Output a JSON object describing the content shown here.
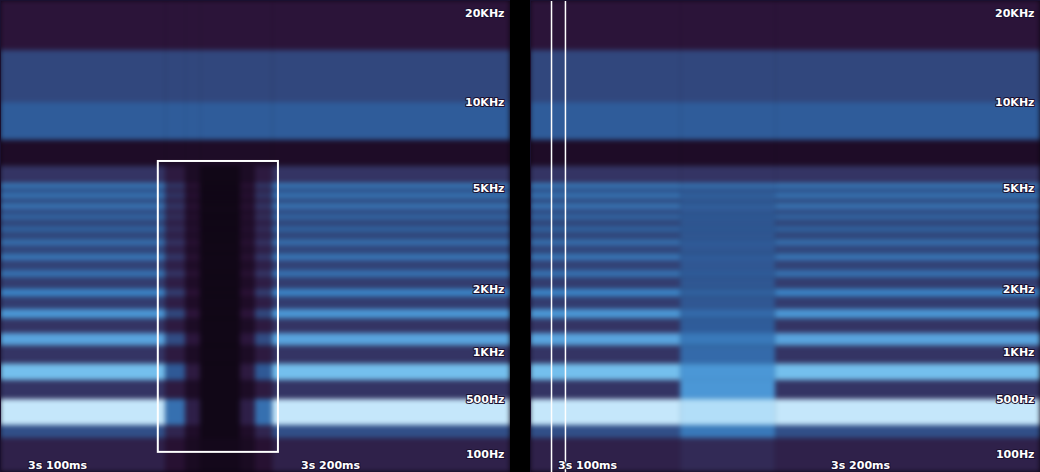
{
  "chart_data": [
    {
      "type": "heatmap",
      "xlim": [
        3.0791,
        3.2659
      ],
      "xticks": [
        {
          "value": 3.1,
          "label": "3s 100ms"
        },
        {
          "value": 3.2,
          "label": "3s 200ms"
        }
      ],
      "ylim": [
        0,
        22000
      ],
      "yticks": [
        {
          "value": 100,
          "label": "100Hz"
        },
        {
          "value": 500,
          "label": "500Hz"
        },
        {
          "value": 1000,
          "label": "1KHz"
        },
        {
          "value": 2000,
          "label": "2KHz"
        },
        {
          "value": 5000,
          "label": "5KHz"
        },
        {
          "value": 10000,
          "label": "10KHz"
        },
        {
          "value": 20000,
          "label": "20KHz"
        }
      ],
      "zlim": [
        0,
        100
      ],
      "time_edges": [
        3.0791,
        3.1396,
        3.1469,
        3.1524,
        3.167,
        3.1725,
        3.1788,
        3.2659
      ],
      "freq_edges": [
        0,
        200,
        290,
        500,
        680,
        860,
        1080,
        1250,
        1470,
        1630,
        1850,
        2010,
        2240,
        2400,
        2640,
        2800,
        3030,
        3190,
        3420,
        3580,
        3810,
        3970,
        4200,
        4360,
        4590,
        4750,
        5000,
        5200,
        6000,
        7400,
        10000,
        15000,
        22000
      ],
      "cells": [
        [
          25,
          15,
          8,
          5,
          8,
          15,
          25
        ],
        [
          45,
          27,
          11,
          3,
          11,
          27,
          45
        ],
        [
          95,
          57,
          24,
          3,
          24,
          57,
          95
        ],
        [
          35,
          21,
          9,
          3,
          9,
          21,
          35
        ],
        [
          82,
          49,
          21,
          3,
          21,
          49,
          82
        ],
        [
          35,
          21,
          9,
          3,
          9,
          21,
          35
        ],
        [
          74,
          44,
          19,
          3,
          19,
          44,
          74
        ],
        [
          35,
          21,
          9,
          3,
          9,
          21,
          35
        ],
        [
          70,
          42,
          18,
          3,
          18,
          42,
          70
        ],
        [
          38,
          23,
          10,
          3,
          10,
          23,
          38
        ],
        [
          64,
          38,
          16,
          3,
          16,
          38,
          64
        ],
        [
          38,
          23,
          10,
          3,
          10,
          23,
          38
        ],
        [
          58,
          35,
          15,
          3,
          15,
          35,
          58
        ],
        [
          40,
          24,
          10,
          3,
          10,
          24,
          40
        ],
        [
          60,
          36,
          15,
          3,
          15,
          36,
          60
        ],
        [
          42,
          25,
          11,
          3,
          11,
          25,
          42
        ],
        [
          58,
          35,
          15,
          3,
          15,
          35,
          58
        ],
        [
          42,
          25,
          11,
          3,
          11,
          25,
          42
        ],
        [
          55,
          33,
          14,
          3,
          14,
          33,
          55
        ],
        [
          42,
          25,
          11,
          3,
          11,
          25,
          42
        ],
        [
          56,
          34,
          14,
          3,
          14,
          34,
          56
        ],
        [
          45,
          27,
          11,
          3,
          11,
          27,
          45
        ],
        [
          62,
          37,
          16,
          3,
          16,
          37,
          62
        ],
        [
          45,
          27,
          11,
          3,
          11,
          27,
          45
        ],
        [
          64,
          38,
          16,
          3,
          16,
          38,
          64
        ],
        [
          48,
          29,
          12,
          3,
          12,
          29,
          48
        ],
        [
          62,
          37,
          16,
          3,
          16,
          37,
          62
        ],
        [
          35,
          21,
          9,
          3,
          9,
          21,
          35
        ],
        [
          10,
          10,
          10,
          10,
          10,
          10,
          10
        ],
        [
          50,
          50,
          50,
          50,
          50,
          50,
          50
        ],
        [
          42,
          42,
          42,
          42,
          42,
          42,
          42
        ],
        [
          18,
          18,
          18,
          18,
          18,
          18,
          18
        ]
      ],
      "selection": {
        "x": [
          3.1369,
          3.1809
        ],
        "y": [
          112,
          6230
        ]
      }
    },
    {
      "type": "heatmap",
      "xlim": [
        3.0791,
        3.2659
      ],
      "xticks": [
        {
          "value": 3.1,
          "label": "3s 100ms"
        },
        {
          "value": 3.2,
          "label": "3s 200ms"
        }
      ],
      "ylim": [
        0,
        22000
      ],
      "yticks": [
        {
          "value": 100,
          "label": "100Hz"
        },
        {
          "value": 500,
          "label": "500Hz"
        },
        {
          "value": 1000,
          "label": "1KHz"
        },
        {
          "value": 2000,
          "label": "2KHz"
        },
        {
          "value": 5000,
          "label": "5KHz"
        },
        {
          "value": 10000,
          "label": "10KHz"
        },
        {
          "value": 20000,
          "label": "20KHz"
        }
      ],
      "zlim": [
        0,
        100
      ],
      "time_edges": [
        3.0791,
        3.1341,
        3.1689,
        3.2659
      ],
      "freq_edges": [
        0,
        200,
        290,
        500,
        680,
        860,
        1080,
        1250,
        1470,
        1630,
        1850,
        2010,
        2240,
        2400,
        2640,
        2800,
        3030,
        3190,
        3420,
        3580,
        3810,
        3970,
        4200,
        4360,
        4590,
        4750,
        5000,
        5200,
        6000,
        7400,
        10000,
        15000,
        22000
      ],
      "cells": [
        [
          25,
          30,
          25
        ],
        [
          45,
          60,
          45
        ],
        [
          95,
          92,
          95
        ],
        [
          35,
          70,
          35
        ],
        [
          82,
          70,
          82
        ],
        [
          35,
          55,
          35
        ],
        [
          74,
          60,
          74
        ],
        [
          35,
          50,
          35
        ],
        [
          70,
          55,
          70
        ],
        [
          38,
          48,
          38
        ],
        [
          64,
          52,
          64
        ],
        [
          38,
          48,
          38
        ],
        [
          58,
          50,
          58
        ],
        [
          40,
          48,
          40
        ],
        [
          60,
          50,
          60
        ],
        [
          42,
          48,
          42
        ],
        [
          58,
          50,
          58
        ],
        [
          42,
          48,
          42
        ],
        [
          55,
          50,
          55
        ],
        [
          42,
          48,
          42
        ],
        [
          56,
          50,
          56
        ],
        [
          45,
          48,
          45
        ],
        [
          62,
          52,
          62
        ],
        [
          45,
          48,
          45
        ],
        [
          64,
          55,
          64
        ],
        [
          48,
          48,
          48
        ],
        [
          62,
          60,
          62
        ],
        [
          35,
          35,
          35
        ],
        [
          10,
          10,
          10
        ],
        [
          50,
          50,
          50
        ],
        [
          42,
          42,
          42
        ],
        [
          18,
          18,
          18
        ]
      ],
      "cursor": [
        3.0868,
        3.0919
      ]
    }
  ]
}
